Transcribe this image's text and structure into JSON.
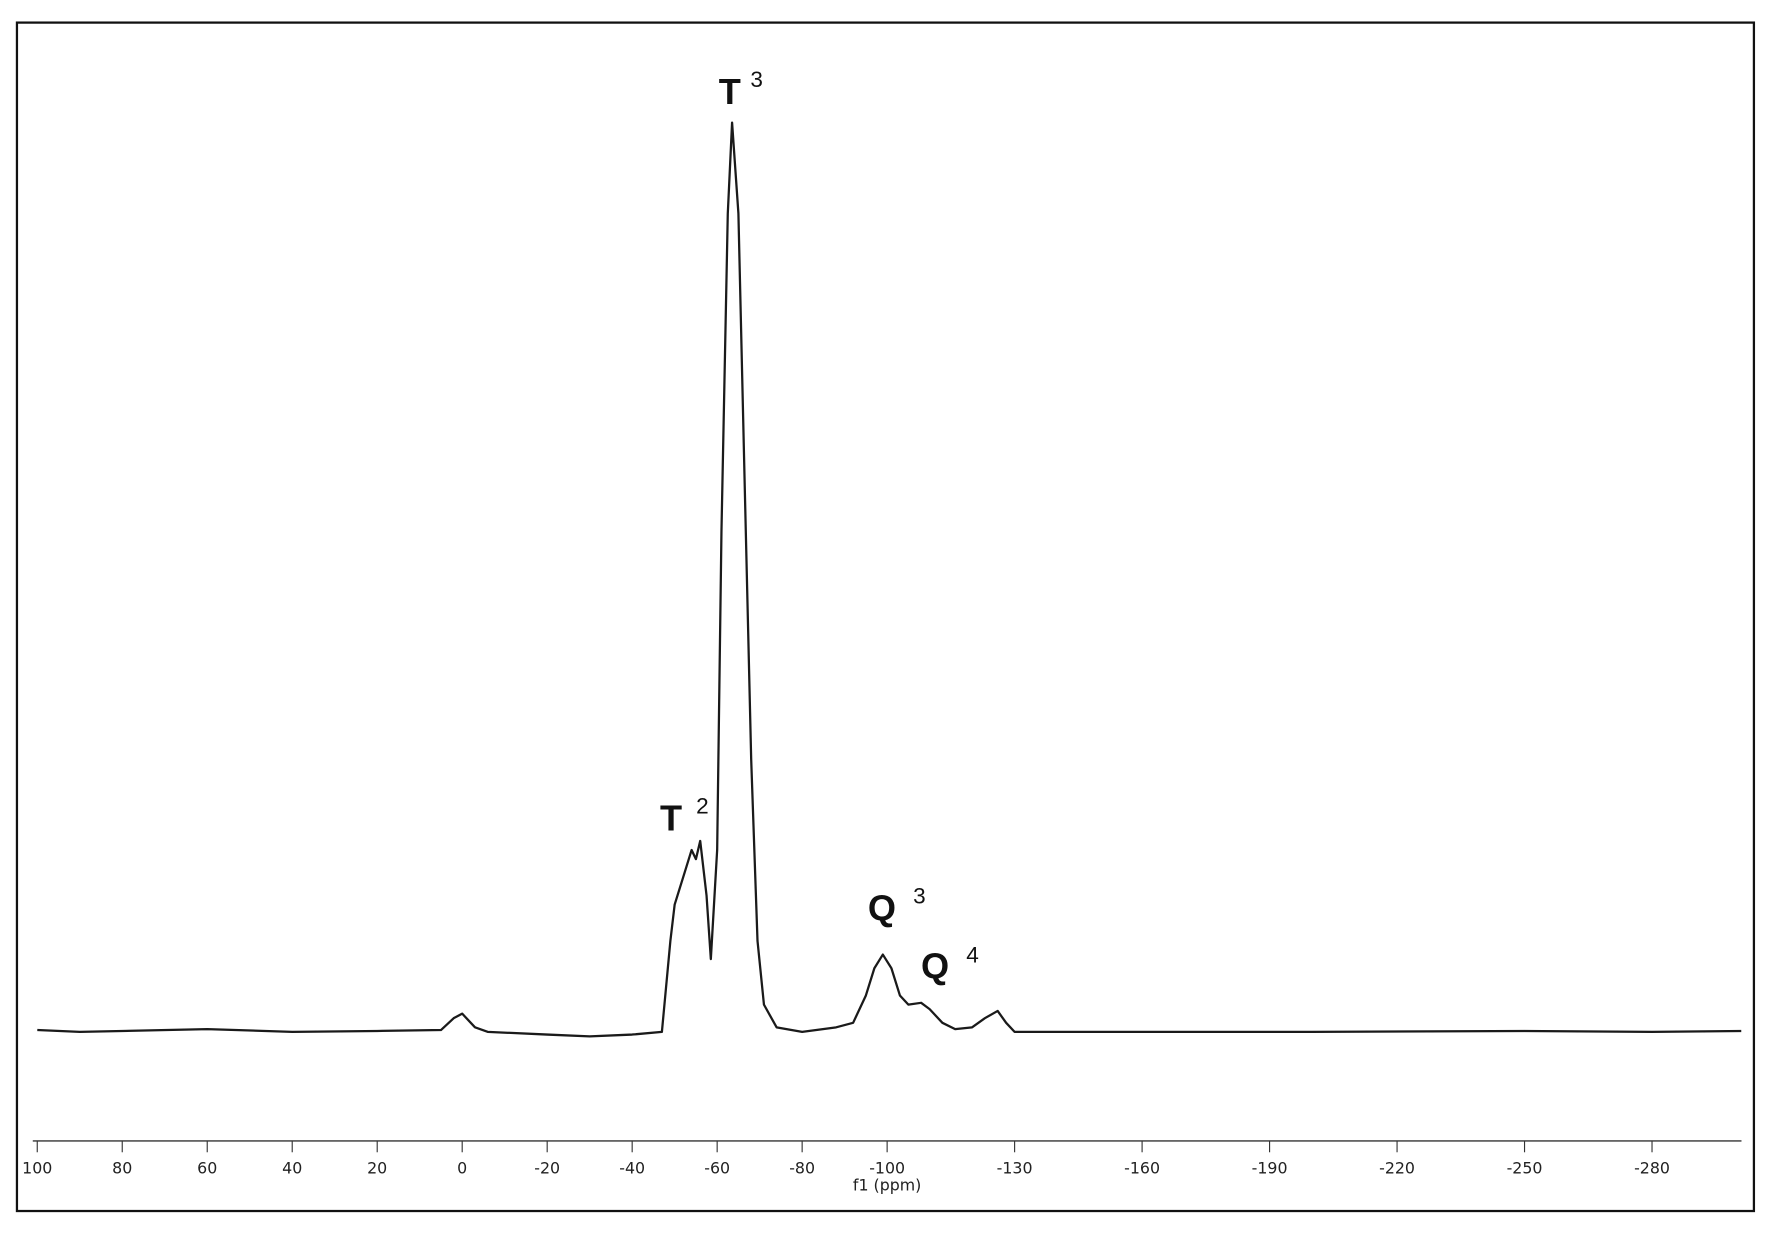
{
  "chart_data": {
    "type": "line",
    "xlabel": "f1 (ppm)",
    "color": "#1a1a1a",
    "x": [
      100,
      90,
      80,
      60,
      40,
      20,
      5,
      2,
      0,
      -3,
      -6,
      -20,
      -30,
      -40,
      -47,
      -49,
      -50,
      -52,
      -54,
      -55,
      -56,
      -57.5,
      -58.5,
      -60,
      -61,
      -62.5,
      -63.5,
      -65,
      -66.5,
      -68,
      -69.5,
      -71,
      -74,
      -80,
      -88,
      -92,
      -95,
      -97,
      -99,
      -101,
      -103,
      -105,
      -108,
      -110,
      -113,
      -116,
      -120,
      -123,
      -126,
      -128,
      -130,
      -150,
      -200,
      -250,
      -280,
      -301
    ],
    "values": [
      0.2,
      0,
      0.1,
      0.3,
      0,
      0.1,
      0.2,
      1.5,
      2,
      0.5,
      0,
      -0.3,
      -0.5,
      -0.3,
      0,
      10,
      14,
      17,
      20,
      19,
      21,
      15,
      8,
      20,
      55,
      90,
      100,
      90,
      60,
      30,
      10,
      3,
      0.5,
      0,
      0.5,
      1,
      4,
      7,
      8.5,
      7,
      4,
      3,
      3.2,
      2.5,
      1,
      0.3,
      0.5,
      1.5,
      2.3,
      1,
      0,
      0,
      0,
      0.1,
      0,
      0.1
    ],
    "xlim": [
      101,
      -301
    ],
    "ylim": [
      -12,
      111
    ],
    "xticks": [
      100,
      80,
      60,
      40,
      20,
      0,
      -20,
      -40,
      -60,
      -80,
      -100,
      -130,
      -160,
      -190,
      -220,
      -250,
      -280
    ],
    "annotations": [
      {
        "text": "T",
        "sup": "3"
      },
      {
        "text": "T",
        "sup": "2"
      },
      {
        "text": "Q",
        "sup": "3"
      },
      {
        "text": "Q",
        "sup": "4"
      }
    ]
  }
}
